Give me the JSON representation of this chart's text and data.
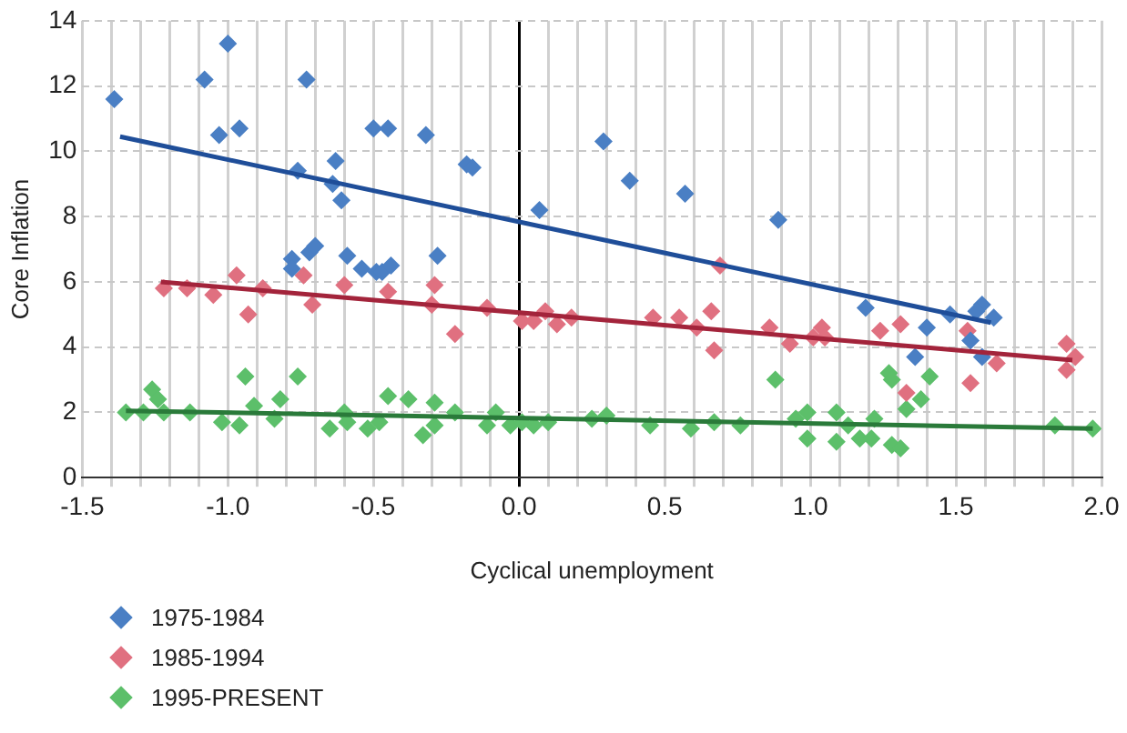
{
  "chart_data": {
    "type": "scatter",
    "xlabel": "Cyclical unemployment",
    "ylabel": "Core Inflation",
    "xlim": [
      -1.5,
      2.0
    ],
    "xticks": [
      {
        "value": -1.5,
        "label": "-1.5"
      },
      {
        "value": -1.4,
        "label": null
      },
      {
        "value": -1.3,
        "label": null
      },
      {
        "value": -1.2,
        "label": null
      },
      {
        "value": -1.1,
        "label": null
      },
      {
        "value": -1.0,
        "label": "-1.0"
      },
      {
        "value": -0.9,
        "label": null
      },
      {
        "value": -0.8,
        "label": null
      },
      {
        "value": -0.7,
        "label": null
      },
      {
        "value": -0.6,
        "label": null
      },
      {
        "value": -0.5,
        "label": "-0.5"
      },
      {
        "value": -0.4,
        "label": null
      },
      {
        "value": -0.3,
        "label": null
      },
      {
        "value": -0.2,
        "label": null
      },
      {
        "value": -0.1,
        "label": null
      },
      {
        "value": 0,
        "label": "0.0"
      },
      {
        "value": 0.1,
        "label": null
      },
      {
        "value": 0.2,
        "label": null
      },
      {
        "value": 0.3,
        "label": null
      },
      {
        "value": 0.4,
        "label": null
      },
      {
        "value": 0.5,
        "label": "0.5"
      },
      {
        "value": 0.6,
        "label": null
      },
      {
        "value": 0.7,
        "label": null
      },
      {
        "value": 0.8,
        "label": null
      },
      {
        "value": 0.9,
        "label": null
      },
      {
        "value": 1.0,
        "label": "1.0"
      },
      {
        "value": 1.1,
        "label": null
      },
      {
        "value": 1.2,
        "label": null
      },
      {
        "value": 1.3,
        "label": null
      },
      {
        "value": 1.4,
        "label": null
      },
      {
        "value": 1.5,
        "label": "1.5"
      },
      {
        "value": 1.6,
        "label": null
      },
      {
        "value": 1.7,
        "label": null
      },
      {
        "value": 1.8,
        "label": null
      },
      {
        "value": 1.9,
        "label": null
      },
      {
        "value": 2.0,
        "label": "2.0"
      }
    ],
    "ylim": [
      0,
      14
    ],
    "yticks": [
      0,
      2,
      4,
      6,
      8,
      10,
      12,
      14
    ],
    "grid": true,
    "legend": "bottom",
    "series": [
      {
        "name": "1975-1984",
        "marker": "diamond",
        "color": "#4a7fc4",
        "x": [
          -1.39,
          -1.08,
          -1.0,
          -1.03,
          -0.96,
          -0.73,
          -0.76,
          -0.63,
          -0.64,
          -0.61,
          -0.78,
          -0.78,
          -0.72,
          -0.7,
          -0.59,
          -0.54,
          -0.5,
          -0.45,
          -0.49,
          -0.47,
          -0.44,
          -0.32,
          -0.18,
          -0.16,
          -0.28,
          0.07,
          0.29,
          0.38,
          0.57,
          0.89,
          1.19,
          1.4,
          1.36,
          1.48,
          1.55,
          1.59,
          1.57,
          1.63,
          1.59
        ],
        "values": [
          11.6,
          12.2,
          13.3,
          10.5,
          10.7,
          12.2,
          9.4,
          9.7,
          9.0,
          8.5,
          6.7,
          6.4,
          6.9,
          7.1,
          6.8,
          6.4,
          10.7,
          10.7,
          6.3,
          6.3,
          6.5,
          10.5,
          9.6,
          9.5,
          6.8,
          8.2,
          10.3,
          9.1,
          8.7,
          7.9,
          5.2,
          4.6,
          3.7,
          5.0,
          4.2,
          5.3,
          5.1,
          4.9,
          3.7
        ]
      },
      {
        "name": "1985-1994",
        "marker": "diamond",
        "color": "#e07080",
        "x": [
          -1.22,
          -1.14,
          -1.05,
          -0.97,
          -0.93,
          -0.88,
          -0.74,
          -0.71,
          -0.6,
          -0.45,
          -0.29,
          -0.3,
          -0.22,
          -0.11,
          0.01,
          0.05,
          0.09,
          0.13,
          0.18,
          0.46,
          0.55,
          0.61,
          0.66,
          0.67,
          0.69,
          0.86,
          0.93,
          1.01,
          1.04,
          1.05,
          1.24,
          1.31,
          1.33,
          1.54,
          1.55,
          1.64,
          1.88,
          1.91,
          1.88
        ],
        "values": [
          5.8,
          5.8,
          5.6,
          6.2,
          5.0,
          5.8,
          6.2,
          5.3,
          5.9,
          5.7,
          5.9,
          5.3,
          4.4,
          5.2,
          4.8,
          4.8,
          5.1,
          4.7,
          4.9,
          4.9,
          4.9,
          4.6,
          5.1,
          3.9,
          6.5,
          4.6,
          4.1,
          4.3,
          4.6,
          4.3,
          4.5,
          4.7,
          2.6,
          4.5,
          2.9,
          3.5,
          4.1,
          3.7,
          3.3
        ]
      },
      {
        "name": "1995-PRESENT",
        "marker": "diamond",
        "color": "#5cbf6a",
        "x": [
          -1.35,
          -1.29,
          -1.26,
          -1.24,
          -1.22,
          -1.13,
          -1.02,
          -0.96,
          -0.94,
          -0.91,
          -0.84,
          -0.82,
          -0.76,
          -0.65,
          -0.6,
          -0.59,
          -0.52,
          -0.48,
          -0.45,
          -0.38,
          -0.29,
          -0.33,
          -0.29,
          -0.22,
          -0.11,
          -0.08,
          -0.03,
          0.01,
          0.05,
          0.1,
          0.25,
          0.3,
          0.45,
          0.59,
          0.67,
          0.76,
          0.88,
          0.95,
          0.99,
          0.99,
          1.09,
          1.09,
          1.13,
          1.17,
          1.21,
          1.22,
          1.27,
          1.28,
          1.28,
          1.31,
          1.33,
          1.38,
          1.41,
          1.84,
          1.97
        ],
        "values": [
          2.0,
          2.0,
          2.7,
          2.4,
          2.0,
          2.0,
          1.7,
          1.6,
          3.1,
          2.2,
          1.8,
          2.4,
          3.1,
          1.5,
          2.0,
          1.7,
          1.5,
          1.7,
          2.5,
          2.4,
          2.3,
          1.3,
          1.6,
          2.0,
          1.6,
          2.0,
          1.6,
          1.7,
          1.6,
          1.7,
          1.8,
          1.9,
          1.6,
          1.5,
          1.7,
          1.6,
          3.0,
          1.8,
          2.0,
          1.2,
          2.0,
          1.1,
          1.6,
          1.2,
          1.2,
          1.8,
          3.2,
          3.0,
          1.0,
          0.9,
          2.1,
          2.4,
          3.1,
          1.6,
          1.5
        ]
      },
      {
        "type": "line",
        "marker": "none",
        "color": "#1f4e99",
        "x": [
          -1.37,
          1.62
        ],
        "values": [
          10.45,
          4.75
        ]
      },
      {
        "type": "line",
        "marker": "none",
        "color": "#a3243b",
        "x": [
          -1.23,
          1.9
        ],
        "values": [
          6.0,
          3.6
        ]
      },
      {
        "type": "line",
        "marker": "none",
        "color": "#2a7a3a",
        "x": [
          -1.35,
          1.97
        ],
        "values": [
          2.05,
          1.5
        ]
      }
    ]
  }
}
